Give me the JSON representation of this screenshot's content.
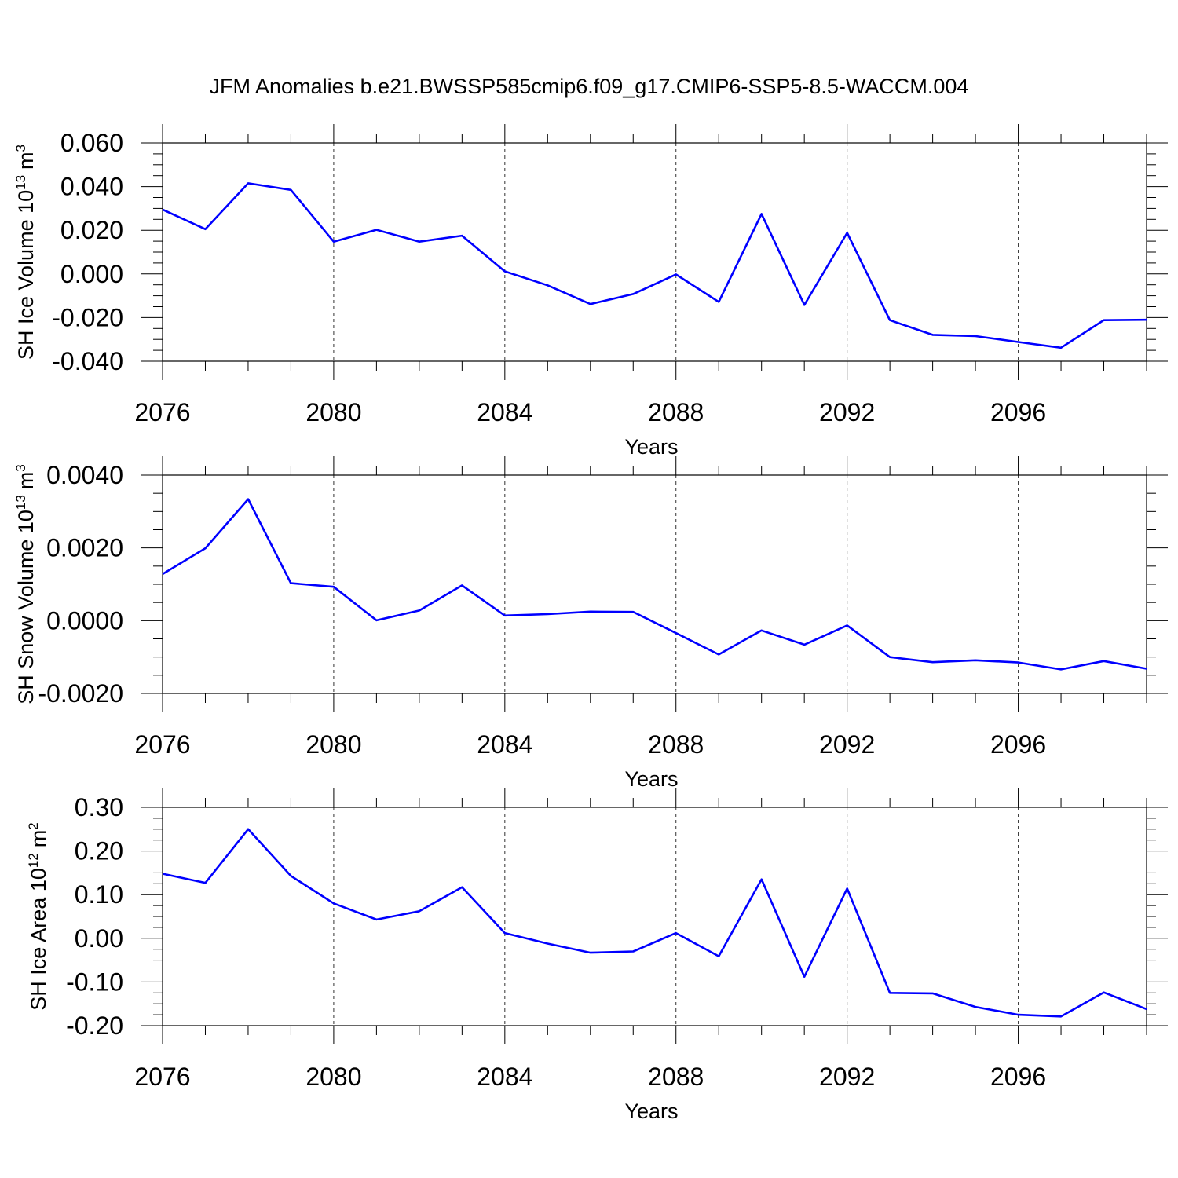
{
  "figure_title": "JFM Anomalies b.e21.BWSSP585cmip6.f09_g17.CMIP6-SSP5-8.5-WACCM.004",
  "colors": {
    "series": "#0000ff",
    "axes": "#000000",
    "background": "#ffffff"
  },
  "chart_data": [
    {
      "type": "line",
      "ylabel_main": "SH Ice Volume 10",
      "ylabel_exp": "13",
      "ylabel_unit": "m",
      "ylabel_unit_exp": "3",
      "xlabel": "Years",
      "xlim": [
        2076,
        2099
      ],
      "ylim": [
        -0.04,
        0.06
      ],
      "x_ticks": [
        2076,
        2080,
        2084,
        2088,
        2092,
        2096
      ],
      "x_tick_labels": [
        "2076",
        "2080",
        "2084",
        "2088",
        "2092",
        "2096"
      ],
      "y_ticks": [
        -0.04,
        -0.02,
        0.0,
        0.02,
        0.04,
        0.06
      ],
      "y_tick_labels": [
        "-0.040",
        "-0.020",
        "0.000",
        "0.020",
        "0.040",
        "0.060"
      ],
      "y_minor_step": 0.005,
      "grid": "dashed vertical at major x ticks",
      "series": [
        {
          "x": [
            2076,
            2077,
            2078,
            2079,
            2080,
            2081,
            2082,
            2083,
            2084,
            2085,
            2086,
            2087,
            2088,
            2089,
            2090,
            2091,
            2092,
            2093,
            2094,
            2095,
            2096,
            2097,
            2098,
            2099
          ],
          "values": [
            0.0295,
            0.0205,
            0.0415,
            0.0385,
            0.0148,
            0.0202,
            0.0148,
            0.0175,
            0.0012,
            -0.0052,
            -0.0138,
            -0.0092,
            -0.0002,
            -0.0128,
            0.0275,
            -0.0142,
            0.0188,
            -0.0212,
            -0.0279,
            -0.0285,
            -0.0312,
            -0.0338,
            -0.0212,
            -0.021
          ]
        }
      ]
    },
    {
      "type": "line",
      "ylabel_main": "SH Snow Volume 10",
      "ylabel_exp": "13",
      "ylabel_unit": "m",
      "ylabel_unit_exp": "3",
      "xlabel": "Years",
      "xlim": [
        2076,
        2099
      ],
      "ylim": [
        -0.002,
        0.004
      ],
      "x_ticks": [
        2076,
        2080,
        2084,
        2088,
        2092,
        2096
      ],
      "x_tick_labels": [
        "2076",
        "2080",
        "2084",
        "2088",
        "2092",
        "2096"
      ],
      "y_ticks": [
        -0.002,
        0.0,
        0.002,
        0.004
      ],
      "y_tick_labels": [
        "-0.0020",
        "0.0000",
        "0.0020",
        "0.0040"
      ],
      "y_minor_step": 0.0005,
      "grid": "dashed vertical at major x ticks",
      "series": [
        {
          "x": [
            2076,
            2077,
            2078,
            2079,
            2080,
            2081,
            2082,
            2083,
            2084,
            2085,
            2086,
            2087,
            2088,
            2089,
            2090,
            2091,
            2092,
            2093,
            2094,
            2095,
            2096,
            2097,
            2098,
            2099
          ],
          "values": [
            0.00128,
            0.00199,
            0.00334,
            0.00103,
            0.00093,
            1e-05,
            0.00028,
            0.00097,
            0.00014,
            0.00018,
            0.00025,
            0.00024,
            -0.00034,
            -0.00093,
            -0.00027,
            -0.00066,
            -0.00013,
            -0.001,
            -0.00114,
            -0.00109,
            -0.00115,
            -0.00134,
            -0.00111,
            -0.00132
          ]
        }
      ]
    },
    {
      "type": "line",
      "ylabel_main": "SH Ice Area 10",
      "ylabel_exp": "12",
      "ylabel_unit": "m",
      "ylabel_unit_exp": "2",
      "xlabel": "Years",
      "xlim": [
        2076,
        2099
      ],
      "ylim": [
        -0.2,
        0.3
      ],
      "x_ticks": [
        2076,
        2080,
        2084,
        2088,
        2092,
        2096
      ],
      "x_tick_labels": [
        "2076",
        "2080",
        "2084",
        "2088",
        "2092",
        "2096"
      ],
      "y_ticks": [
        -0.2,
        -0.1,
        0.0,
        0.1,
        0.2,
        0.3
      ],
      "y_tick_labels": [
        "-0.20",
        "-0.10",
        "0.00",
        "0.10",
        "0.20",
        "0.30"
      ],
      "y_minor_step": 0.025,
      "grid": "dashed vertical at major x ticks",
      "series": [
        {
          "x": [
            2076,
            2077,
            2078,
            2079,
            2080,
            2081,
            2082,
            2083,
            2084,
            2085,
            2086,
            2087,
            2088,
            2089,
            2090,
            2091,
            2092,
            2093,
            2094,
            2095,
            2096,
            2097,
            2098,
            2099
          ],
          "values": [
            0.148,
            0.127,
            0.25,
            0.143,
            0.08,
            0.043,
            0.062,
            0.117,
            0.012,
            -0.012,
            -0.033,
            -0.03,
            0.012,
            -0.041,
            0.135,
            -0.088,
            0.114,
            -0.125,
            -0.126,
            -0.157,
            -0.175,
            -0.179,
            -0.124,
            -0.162
          ]
        }
      ]
    }
  ]
}
